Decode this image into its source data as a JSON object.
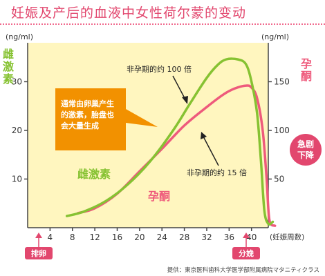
{
  "title": "妊娠及产后的血液中女性荷尔蒙的变动",
  "colors": {
    "estrogen": "#86c232",
    "progesterone": "#ee5a7c",
    "plot_bg": "#fff6bf",
    "callout": "#f29100",
    "badge": "#e2476e",
    "title": "#e2476e"
  },
  "chart_data": {
    "type": "line",
    "x_label": "(妊娠周数)",
    "x_ticks": [
      4,
      8,
      12,
      16,
      20,
      24,
      28,
      32,
      36,
      40
    ],
    "x_range": [
      0,
      43
    ],
    "left_axis": {
      "unit": "(ng/ml)",
      "label": "雌激素",
      "ticks": [
        10,
        20,
        30
      ],
      "range": [
        0,
        38
      ]
    },
    "right_axis": {
      "unit": "(ng/ml)",
      "label": "孕酮",
      "ticks": [
        50,
        100,
        150
      ],
      "range": [
        0,
        190
      ]
    },
    "series": [
      {
        "name": "雌激素",
        "axis": "left",
        "color": "#86c232",
        "points": [
          [
            7,
            2.4
          ],
          [
            10,
            3.3
          ],
          [
            14,
            5.5
          ],
          [
            18,
            9.0
          ],
          [
            22,
            13.8
          ],
          [
            26,
            20.0
          ],
          [
            29,
            25.5
          ],
          [
            32,
            30.8
          ],
          [
            34,
            33.5
          ],
          [
            35.5,
            34.6
          ],
          [
            37.5,
            34.6
          ],
          [
            39,
            33.6
          ],
          [
            40,
            30.0
          ],
          [
            41,
            23.5
          ],
          [
            41.7,
            13.5
          ],
          [
            42.3,
            3.5
          ],
          [
            43,
            0.8
          ],
          [
            43.8,
            1.2
          ]
        ]
      },
      {
        "name": "孕酮",
        "axis": "right",
        "color": "#ee5a7c",
        "points": [
          [
            9,
            15
          ],
          [
            12,
            20
          ],
          [
            16,
            35
          ],
          [
            20,
            58
          ],
          [
            24,
            81
          ],
          [
            28,
            105
          ],
          [
            32,
            124
          ],
          [
            35,
            137
          ],
          [
            37,
            143
          ],
          [
            39,
            146
          ],
          [
            40,
            144
          ],
          [
            41,
            133
          ],
          [
            42,
            100
          ],
          [
            42.7,
            50
          ],
          [
            43.2,
            8
          ],
          [
            44.2,
            2
          ]
        ]
      }
    ],
    "annotations": [
      {
        "id": "estrogen_ratio",
        "text": "非孕期的约 100 倍"
      },
      {
        "id": "progesterone_ratio",
        "text": "非孕期的约 15 倍"
      }
    ]
  },
  "callout": {
    "lines": [
      "通常由卵巢产生",
      "的激素，胎盘也",
      "会大量生成"
    ]
  },
  "side_badge": {
    "lines": [
      "急剧",
      "下降"
    ]
  },
  "curve_labels": {
    "estrogen": "雌激素",
    "progesterone": "孕酮"
  },
  "markers": {
    "ovulation": "排卵",
    "delivery": "分娩"
  },
  "credit": "提供：東京医科歯科大学医学部附属病院マタニティクラス"
}
